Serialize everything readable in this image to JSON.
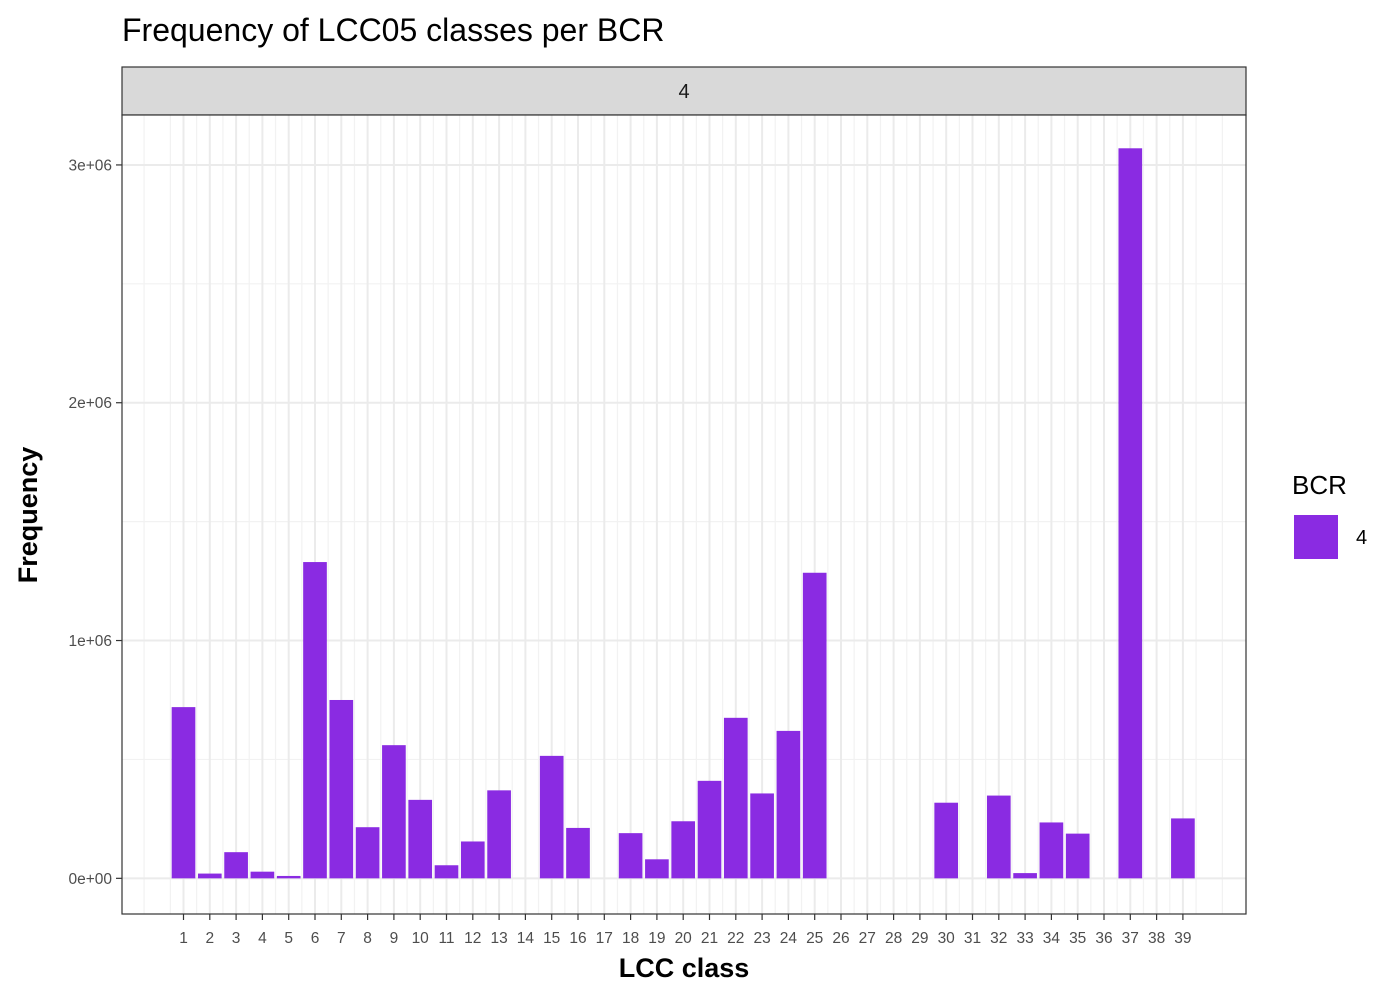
{
  "chart_data": {
    "type": "bar",
    "title": "Frequency of LCC05 classes per BCR",
    "xlabel": "LCC class",
    "ylabel": "Frequency",
    "facet_label": "4",
    "categories": [
      "1",
      "2",
      "3",
      "4",
      "5",
      "6",
      "7",
      "8",
      "9",
      "10",
      "11",
      "12",
      "13",
      "14",
      "15",
      "16",
      "17",
      "18",
      "19",
      "20",
      "21",
      "22",
      "23",
      "24",
      "25",
      "26",
      "27",
      "28",
      "29",
      "30",
      "31",
      "32",
      "33",
      "34",
      "35",
      "36",
      "37",
      "38",
      "39"
    ],
    "series": [
      {
        "name": "4",
        "color": "#8A2BE2",
        "values": [
          720000,
          20000,
          110000,
          28000,
          10000,
          1330000,
          750000,
          215000,
          560000,
          330000,
          55000,
          155000,
          370000,
          0,
          515000,
          212000,
          0,
          190000,
          80000,
          240000,
          410000,
          675000,
          357000,
          620000,
          1285000,
          0,
          0,
          0,
          0,
          318000,
          0,
          348000,
          22000,
          235000,
          188000,
          0,
          3070000,
          0,
          252000
        ]
      }
    ],
    "ylim": [
      -150000,
      3210000
    ],
    "yticks": [
      0,
      1000000,
      2000000,
      3000000
    ],
    "ytick_labels": [
      "0e+00",
      "1e+06",
      "2e+06",
      "3e+06"
    ],
    "grid": true,
    "legend": {
      "title": "BCR",
      "entries": [
        "4"
      ],
      "position": "right"
    }
  }
}
